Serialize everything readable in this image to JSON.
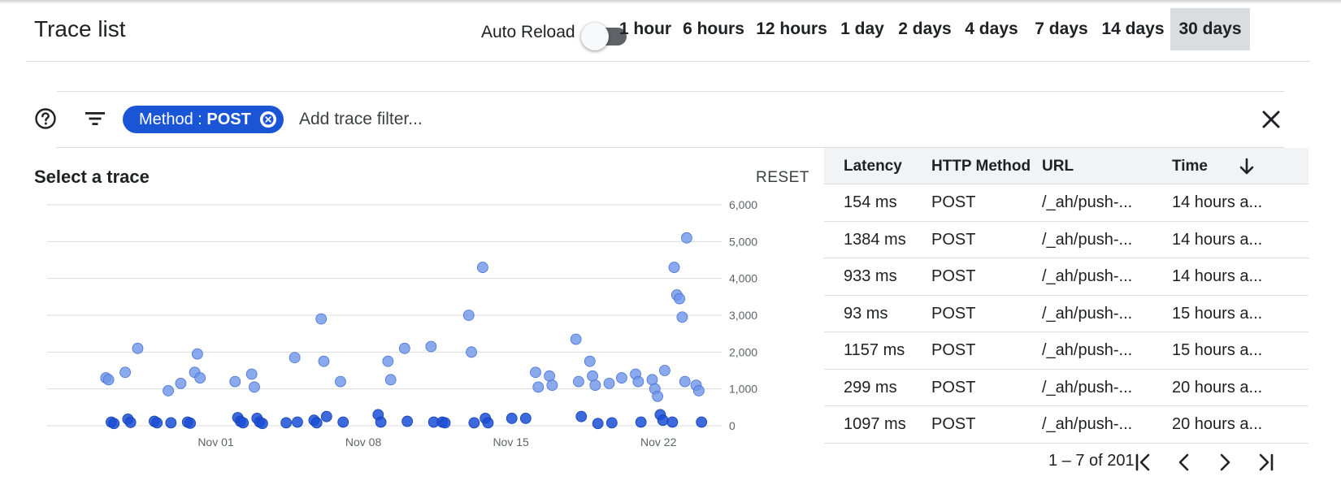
{
  "header": {
    "title": "Trace list",
    "auto_reload_label": "Auto Reload",
    "auto_reload_on": false,
    "time_ranges": [
      "1 hour",
      "6 hours",
      "12 hours",
      "1 day",
      "2 days",
      "4 days",
      "7 days",
      "14 days",
      "30 days"
    ],
    "selected_range": "30 days"
  },
  "filter_bar": {
    "help_icon": "help-circle-icon",
    "filter_icon": "filter-list-icon",
    "chip_key": "Method : ",
    "chip_value": "POST",
    "placeholder": "Add trace filter...",
    "close_icon": "close-icon"
  },
  "chart_panel": {
    "title": "Select a trace",
    "reset_label": "RESET"
  },
  "chart_data": {
    "type": "scatter",
    "title": "",
    "xlabel": "",
    "ylabel": "",
    "x_ticks": [
      "Nov 01",
      "Nov 08",
      "Nov 15",
      "Nov 22"
    ],
    "y_ticks": [
      "0",
      "1,000",
      "2,000",
      "3,000",
      "4,000",
      "5,000",
      "6,000"
    ],
    "ylim": [
      0,
      6000
    ],
    "xlim_days": [
      "Oct 25",
      "Nov 24"
    ],
    "grid": true,
    "y_axis_side": "right",
    "colors": {
      "light_point": "#6e93e8",
      "dark_point": "#1a4fd6"
    },
    "series": [
      {
        "points": [
          [
            "Oct 27",
            1300
          ],
          [
            "Oct 27",
            1250
          ],
          [
            "Oct 27",
            100
          ],
          [
            "Oct 27",
            60
          ],
          [
            "Oct 28",
            2100
          ],
          [
            "Oct 28",
            1450
          ],
          [
            "Oct 28",
            180
          ],
          [
            "Oct 28",
            90
          ],
          [
            "Oct 29",
            120
          ],
          [
            "Oct 29",
            80
          ],
          [
            "Oct 30",
            1150
          ],
          [
            "Oct 30",
            950
          ],
          [
            "Oct 30",
            80
          ],
          [
            "Oct 31",
            1450
          ],
          [
            "Oct 31",
            1950
          ],
          [
            "Oct 31",
            1300
          ],
          [
            "Oct 31",
            100
          ],
          [
            "Oct 31",
            70
          ],
          [
            "Nov 02",
            1200
          ],
          [
            "Nov 02",
            220
          ],
          [
            "Nov 02",
            120
          ],
          [
            "Nov 02",
            80
          ],
          [
            "Nov 03",
            1400
          ],
          [
            "Nov 03",
            1050
          ],
          [
            "Nov 03",
            200
          ],
          [
            "Nov 03",
            100
          ],
          [
            "Nov 03",
            60
          ],
          [
            "Nov 04",
            80
          ],
          [
            "Nov 05",
            1850
          ],
          [
            "Nov 05",
            100
          ],
          [
            "Nov 06",
            2900
          ],
          [
            "Nov 06",
            1750
          ],
          [
            "Nov 06",
            250
          ],
          [
            "Nov 06",
            150
          ],
          [
            "Nov 06",
            80
          ],
          [
            "Nov 07",
            1200
          ],
          [
            "Nov 07",
            100
          ],
          [
            "Nov 09",
            1750
          ],
          [
            "Nov 09",
            1250
          ],
          [
            "Nov 09",
            300
          ],
          [
            "Nov 09",
            100
          ],
          [
            "Nov 10",
            2100
          ],
          [
            "Nov 10",
            120
          ],
          [
            "Nov 11",
            2150
          ],
          [
            "Nov 11",
            100
          ],
          [
            "Nov 12",
            100
          ],
          [
            "Nov 12",
            80
          ],
          [
            "Nov 13",
            3000
          ],
          [
            "Nov 13",
            2000
          ],
          [
            "Nov 13",
            80
          ],
          [
            "Nov 14",
            4300
          ],
          [
            "Nov 14",
            200
          ],
          [
            "Nov 14",
            80
          ],
          [
            "Nov 15",
            200
          ],
          [
            "Nov 16",
            1450
          ],
          [
            "Nov 16",
            1050
          ],
          [
            "Nov 16",
            200
          ],
          [
            "Nov 17",
            1350
          ],
          [
            "Nov 17",
            1100
          ],
          [
            "Nov 18",
            2350
          ],
          [
            "Nov 18",
            1200
          ],
          [
            "Nov 18",
            250
          ],
          [
            "Nov 19",
            1750
          ],
          [
            "Nov 19",
            1350
          ],
          [
            "Nov 19",
            1100
          ],
          [
            "Nov 19",
            60
          ],
          [
            "Nov 20",
            1300
          ],
          [
            "Nov 20",
            1150
          ],
          [
            "Nov 20",
            80
          ],
          [
            "Nov 21",
            1400
          ],
          [
            "Nov 21",
            1200
          ],
          [
            "Nov 21",
            100
          ],
          [
            "Nov 22",
            1500
          ],
          [
            "Nov 22",
            1250
          ],
          [
            "Nov 22",
            1000
          ],
          [
            "Nov 22",
            800
          ],
          [
            "Nov 22",
            300
          ],
          [
            "Nov 22",
            150
          ],
          [
            "Nov 23",
            5100
          ],
          [
            "Nov 23",
            4300
          ],
          [
            "Nov 23",
            3550
          ],
          [
            "Nov 23",
            3450
          ],
          [
            "Nov 23",
            2950
          ],
          [
            "Nov 23",
            1200
          ],
          [
            "Nov 23",
            100
          ],
          [
            "Nov 24",
            1100
          ],
          [
            "Nov 24",
            950
          ],
          [
            "Nov 24",
            100
          ]
        ]
      }
    ]
  },
  "table": {
    "columns": [
      "Latency",
      "HTTP Method",
      "URL",
      "Time"
    ],
    "sort_icon": "arrow-down-icon",
    "rows": [
      [
        "154 ms",
        "POST",
        "/_ah/push-...",
        "14 hours a..."
      ],
      [
        "1384 ms",
        "POST",
        "/_ah/push-...",
        "14 hours a..."
      ],
      [
        "933 ms",
        "POST",
        "/_ah/push-...",
        "14 hours a..."
      ],
      [
        "93 ms",
        "POST",
        "/_ah/push-...",
        "15 hours a..."
      ],
      [
        "1157 ms",
        "POST",
        "/_ah/push-...",
        "15 hours a..."
      ],
      [
        "299 ms",
        "POST",
        "/_ah/push-...",
        "20 hours a..."
      ],
      [
        "1097 ms",
        "POST",
        "/_ah/push-...",
        "20 hours a..."
      ]
    ]
  },
  "pagination": {
    "range_text": "1 – 7 of 201",
    "icons": [
      "first-page-icon",
      "previous-page-icon",
      "next-page-icon",
      "last-page-icon"
    ]
  }
}
